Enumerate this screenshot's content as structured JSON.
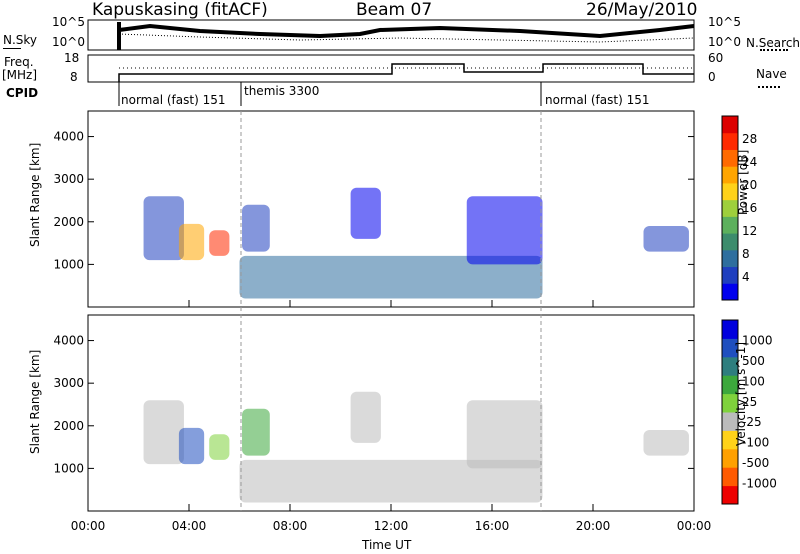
{
  "header": {
    "station": "Kapuskasing (fitACF)",
    "beam": "Beam 07",
    "date": "26/May/2010"
  },
  "left_labels": {
    "nsky": "N.Sky",
    "freq": "Freq.",
    "freq_unit": "[MHz]",
    "cpid": "CPID"
  },
  "right_labels": {
    "nsearch": "N.Search",
    "nave": "Nave"
  },
  "top_panels": {
    "noise_ticks_left": [
      "10^5",
      "10^0"
    ],
    "noise_ticks_right": [
      "10^5",
      "10^0"
    ],
    "freq_ticks": [
      "18",
      "8"
    ],
    "nave_ticks": [
      "60",
      "0"
    ]
  },
  "cpid_segments": [
    {
      "label": "normal (fast) 151"
    },
    {
      "label": "themis 3300"
    },
    {
      "label": "normal (fast) 151"
    }
  ],
  "colors": {
    "power_scale": [
      "#0000ee",
      "#1f3fbf",
      "#2e6e9e",
      "#3c8c6c",
      "#5cb05c",
      "#9ecf3c",
      "#ffd21a",
      "#ffa500",
      "#ff6a00",
      "#ff2a00",
      "#dd0000"
    ],
    "velocity_scale": [
      "#0000dd",
      "#1f4fbf",
      "#2e7e7e",
      "#3ca83c",
      "#7fd23c",
      "#bbbbbb",
      "#ffd21a",
      "#ffa000",
      "#ff5a00",
      "#ee0000"
    ]
  },
  "chart_data": [
    {
      "type": "heatmap",
      "panel": "power",
      "ylabel": "Slant Range [km]",
      "yticks": [
        "4000",
        "3000",
        "2000",
        "1000"
      ],
      "ylim": [
        0,
        4600
      ],
      "xlim": [
        0,
        24
      ],
      "colorbar": {
        "label": "Power [dB]",
        "ticks": [
          "28",
          "24",
          "20",
          "16",
          "12",
          "8",
          "4"
        ],
        "range": [
          0,
          30
        ]
      }
    },
    {
      "type": "heatmap",
      "panel": "velocity",
      "ylabel": "Slant Range [km]",
      "yticks": [
        "4000",
        "3000",
        "2000",
        "1000"
      ],
      "ylim": [
        0,
        4600
      ],
      "xlim": [
        0,
        24
      ],
      "xlabel": "Time UT",
      "xticks": [
        "00:00",
        "04:00",
        "08:00",
        "12:00",
        "16:00",
        "20:00",
        "00:00"
      ],
      "colorbar": {
        "label": "Velocity [m s^-1]",
        "ticks": [
          "1000",
          "500",
          "100",
          "25",
          "-25",
          "-100",
          "-500",
          "-1000"
        ]
      }
    }
  ]
}
